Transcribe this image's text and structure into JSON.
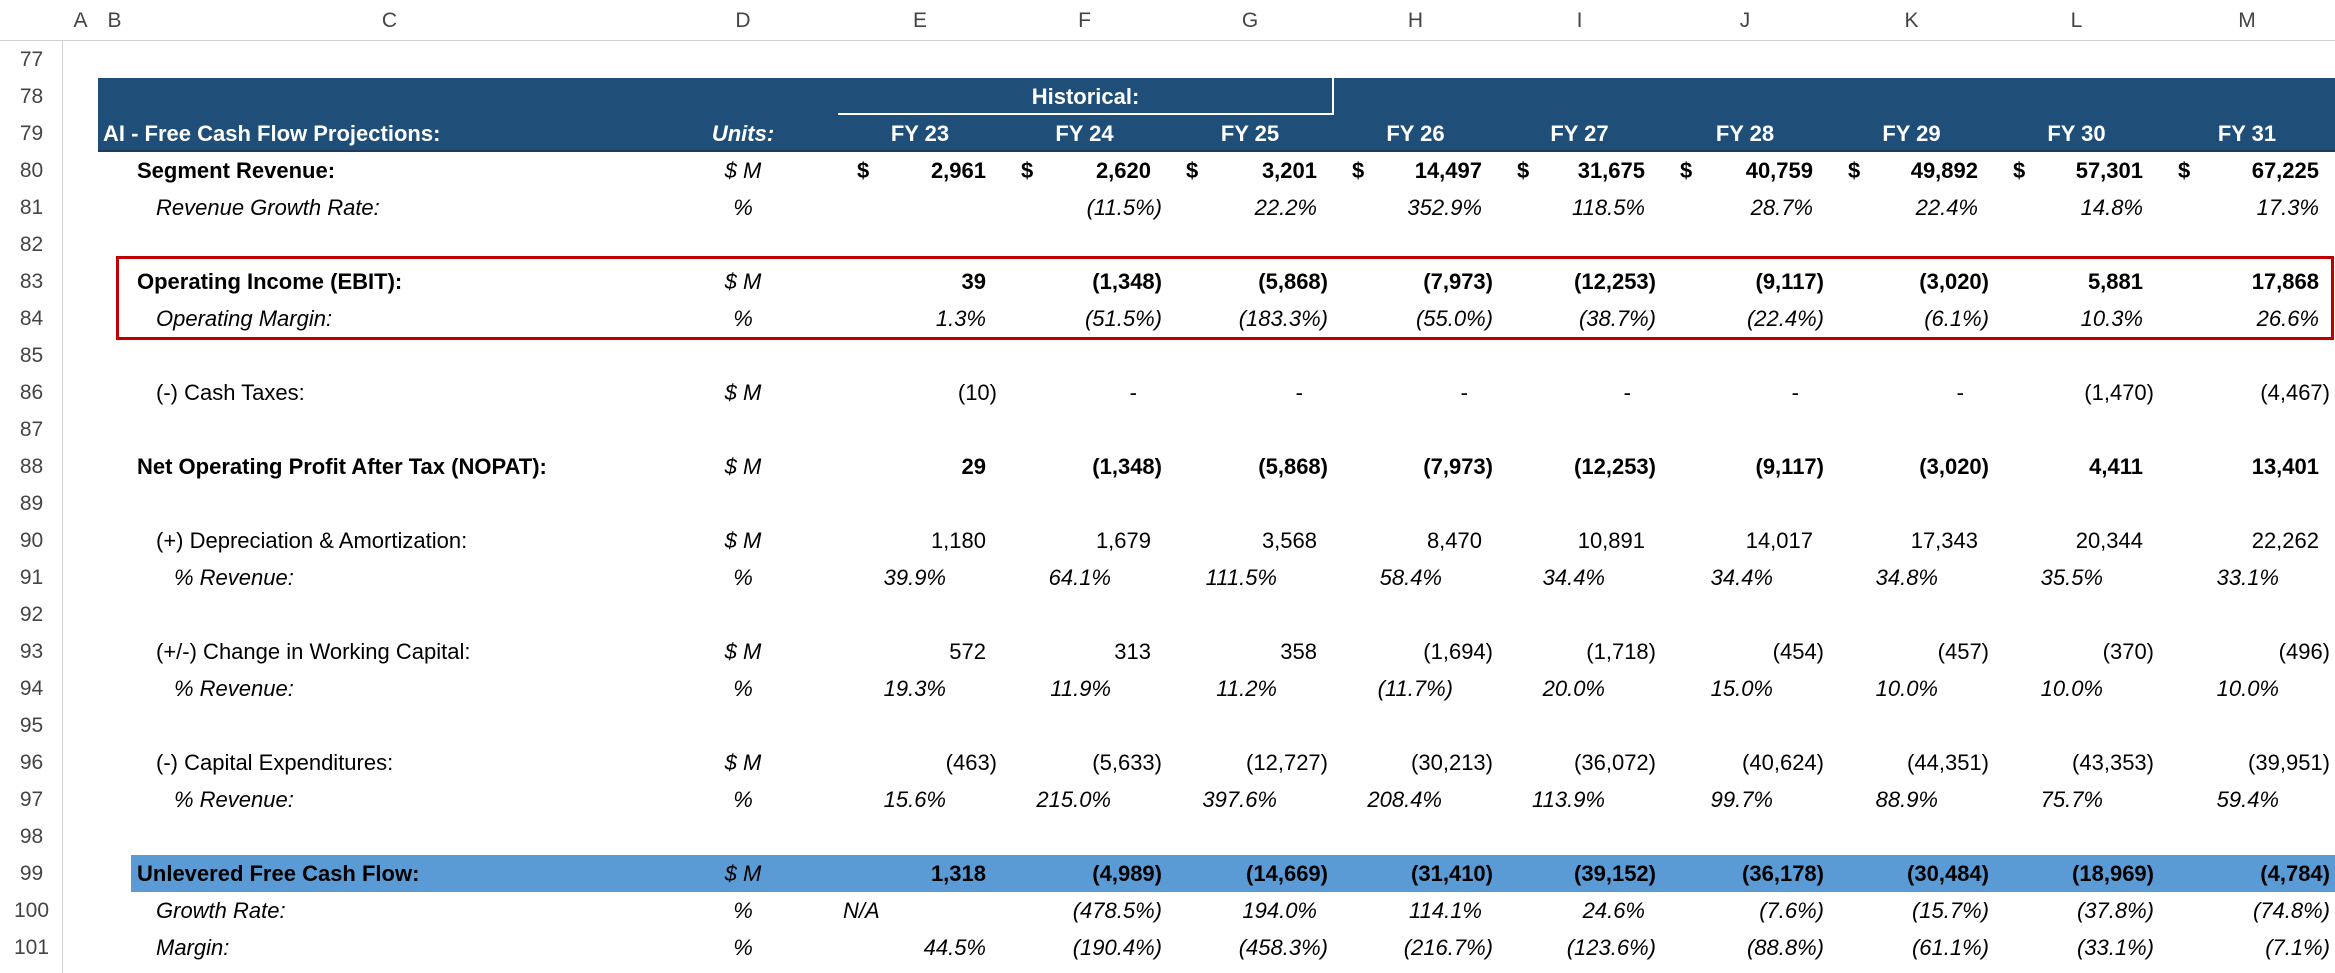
{
  "columns": [
    "A",
    "B",
    "C",
    "D",
    "E",
    "F",
    "G",
    "H",
    "I",
    "J",
    "K",
    "L",
    "M"
  ],
  "rows": [
    {
      "row": 77
    },
    {
      "row": 78,
      "group_label": "Historical:"
    },
    {
      "row": 79,
      "label": "AI - Free Cash Flow Projections:",
      "units": "Units:",
      "cells": [
        "FY 23",
        "FY 24",
        "FY 25",
        "FY 26",
        "FY 27",
        "FY 28",
        "FY 29",
        "FY 30",
        "FY 31"
      ]
    },
    {
      "row": 80,
      "label": "Segment Revenue:",
      "units": "$ M",
      "currency": "$",
      "cells": [
        "2,961",
        "2,620",
        "3,201",
        "14,497",
        "31,675",
        "40,759",
        "49,892",
        "57,301",
        "67,225"
      ]
    },
    {
      "row": 81,
      "label": "Revenue Growth Rate:",
      "units": "%",
      "cells": [
        null,
        "(11.5%)",
        "22.2%",
        "352.9%",
        "118.5%",
        "28.7%",
        "22.4%",
        "14.8%",
        "17.3%"
      ]
    },
    {
      "row": 82
    },
    {
      "row": 83,
      "label": "Operating Income (EBIT):",
      "units": "$ M",
      "cells": [
        "39",
        "(1,348)",
        "(5,868)",
        "(7,973)",
        "(12,253)",
        "(9,117)",
        "(3,020)",
        "5,881",
        "17,868"
      ]
    },
    {
      "row": 84,
      "label": "Operating Margin:",
      "units": "%",
      "cells": [
        "1.3%",
        "(51.5%)",
        "(183.3%)",
        "(55.0%)",
        "(38.7%)",
        "(22.4%)",
        "(6.1%)",
        "10.3%",
        "26.6%"
      ]
    },
    {
      "row": 85
    },
    {
      "row": 86,
      "label": "(-) Cash Taxes:",
      "units": "$ M",
      "cells": [
        "(10)",
        "-",
        "-",
        "-",
        "-",
        "-",
        "-",
        "(1,470)",
        "(4,467)"
      ]
    },
    {
      "row": 87
    },
    {
      "row": 88,
      "label": "Net Operating Profit After Tax (NOPAT):",
      "units": "$ M",
      "cells": [
        "29",
        "(1,348)",
        "(5,868)",
        "(7,973)",
        "(12,253)",
        "(9,117)",
        "(3,020)",
        "4,411",
        "13,401"
      ]
    },
    {
      "row": 89
    },
    {
      "row": 90,
      "label": "(+) Depreciation & Amortization:",
      "units": "$ M",
      "cells": [
        "1,180",
        "1,679",
        "3,568",
        "8,470",
        "10,891",
        "14,017",
        "17,343",
        "20,344",
        "22,262"
      ]
    },
    {
      "row": 91,
      "label": "% Revenue:",
      "units": "%",
      "cells": [
        "39.9%",
        "64.1%",
        "111.5%",
        "58.4%",
        "34.4%",
        "34.4%",
        "34.8%",
        "35.5%",
        "33.1%"
      ]
    },
    {
      "row": 92
    },
    {
      "row": 93,
      "label": "(+/-) Change in Working Capital:",
      "units": "$ M",
      "cells": [
        "572",
        "313",
        "358",
        "(1,694)",
        "(1,718)",
        "(454)",
        "(457)",
        "(370)",
        "(496)"
      ]
    },
    {
      "row": 94,
      "label": "% Revenue:",
      "units": "%",
      "cells": [
        "19.3%",
        "11.9%",
        "11.2%",
        "(11.7%)",
        "20.0%",
        "15.0%",
        "10.0%",
        "10.0%",
        "10.0%"
      ]
    },
    {
      "row": 95
    },
    {
      "row": 96,
      "label": "(-) Capital Expenditures:",
      "units": "$ M",
      "cells": [
        "(463)",
        "(5,633)",
        "(12,727)",
        "(30,213)",
        "(36,072)",
        "(40,624)",
        "(44,351)",
        "(43,353)",
        "(39,951)"
      ]
    },
    {
      "row": 97,
      "label": "% Revenue:",
      "units": "%",
      "cells": [
        "15.6%",
        "215.0%",
        "397.6%",
        "208.4%",
        "113.9%",
        "99.7%",
        "88.9%",
        "75.7%",
        "59.4%"
      ]
    },
    {
      "row": 98
    },
    {
      "row": 99,
      "label": "Unlevered Free Cash Flow:",
      "units": "$ M",
      "cells": [
        "1,318",
        "(4,989)",
        "(14,669)",
        "(31,410)",
        "(39,152)",
        "(36,178)",
        "(30,484)",
        "(18,969)",
        "(4,784)"
      ]
    },
    {
      "row": 100,
      "label": "Growth Rate:",
      "units": "%",
      "cells": [
        "N/A",
        "(478.5%)",
        "194.0%",
        "114.1%",
        "24.6%",
        "(7.6%)",
        "(15.7%)",
        "(37.8%)",
        "(74.8%)"
      ]
    },
    {
      "row": 101,
      "label": "Margin:",
      "units": "%",
      "cells": [
        "44.5%",
        "(190.4%)",
        "(458.3%)",
        "(216.7%)",
        "(123.6%)",
        "(88.8%)",
        "(61.1%)",
        "(33.1%)",
        "(7.1%)"
      ]
    }
  ]
}
